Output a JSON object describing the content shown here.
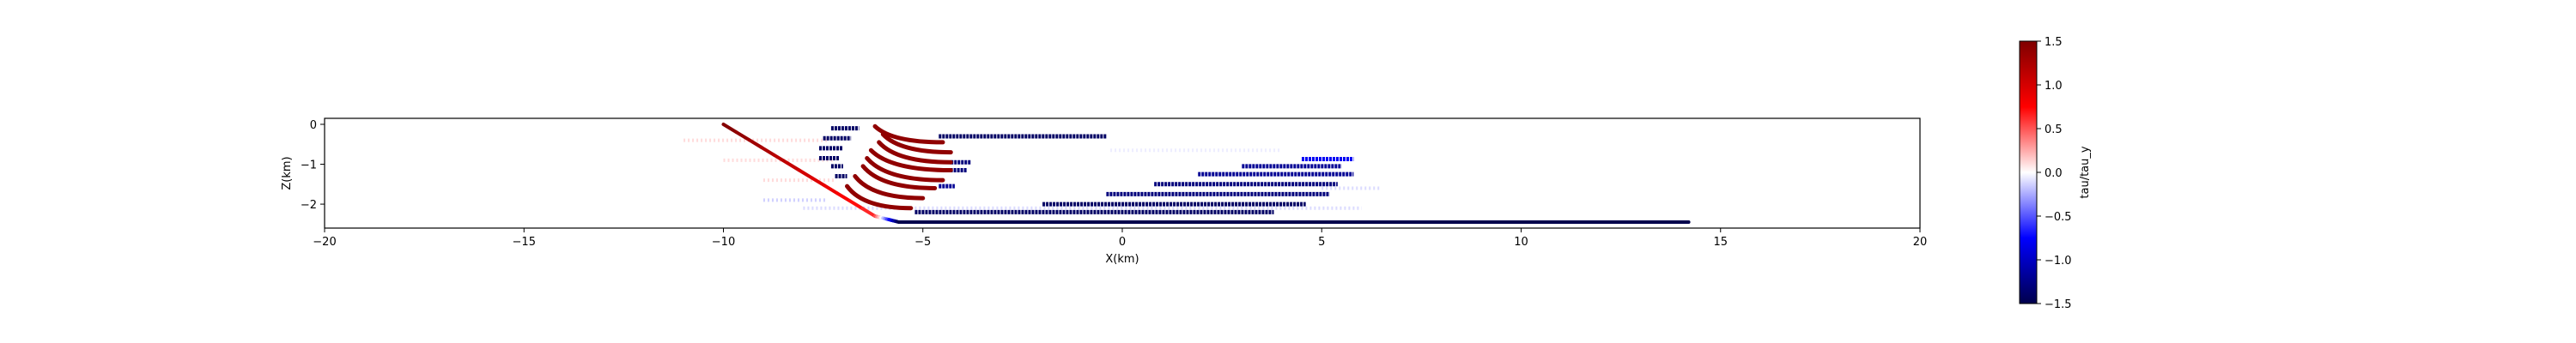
{
  "chart_data": {
    "type": "scatter",
    "xlabel": "X(km)",
    "ylabel": "Z(km)",
    "xlim": [
      -20,
      20
    ],
    "ylim": [
      -2.6,
      0.15
    ],
    "x_ticks": [
      -20,
      -15,
      -10,
      -5,
      0,
      5,
      10,
      15,
      20
    ],
    "y_ticks": [
      0,
      -1,
      -2
    ],
    "grid": false,
    "colorbar": {
      "label": "tau/tau_y",
      "range": [
        -1.5,
        1.5
      ],
      "ticks": [
        1.5,
        1.0,
        0.5,
        0.0,
        -0.5,
        -1.0,
        -1.5
      ],
      "colormap": "seismic",
      "colors": [
        "#00004c",
        "#0000ff",
        "#ffffff",
        "#ff0000",
        "#7f0000"
      ]
    },
    "fault": {
      "points": [
        [
          -10,
          0
        ],
        [
          -6.2,
          -2.3
        ],
        [
          -5.6,
          -2.45
        ],
        [
          14.2,
          -2.45
        ]
      ],
      "values": [
        1.5,
        0.6,
        -1.5,
        -1.5
      ]
    },
    "bands": [
      {
        "x": [
          -7.3,
          -6.6
        ],
        "z": -0.1,
        "value": -1.4
      },
      {
        "x": [
          -7.5,
          -6.8
        ],
        "z": -0.35,
        "value": -1.4
      },
      {
        "x": [
          -7.6,
          -7.0
        ],
        "z": -0.6,
        "value": -1.4
      },
      {
        "x": [
          -7.6,
          -7.1
        ],
        "z": -0.85,
        "value": -1.4
      },
      {
        "x": [
          -7.3,
          -7.0
        ],
        "z": -1.05,
        "value": -1.4
      },
      {
        "x": [
          -7.2,
          -6.9
        ],
        "z": -1.3,
        "value": -1.4
      },
      {
        "x": [
          -4.6,
          -0.4
        ],
        "z": -0.3,
        "value": -1.4
      },
      {
        "x": [
          -4.3,
          -3.8
        ],
        "z": -0.95,
        "value": -1.3
      },
      {
        "x": [
          -4.4,
          -3.9
        ],
        "z": -1.15,
        "value": -1.3
      },
      {
        "x": [
          -4.6,
          -4.2
        ],
        "z": -1.55,
        "value": -1.2
      },
      {
        "x": [
          3.0,
          5.5
        ],
        "z": -1.05,
        "value": -1.2
      },
      {
        "x": [
          1.9,
          5.8
        ],
        "z": -1.25,
        "value": -1.2
      },
      {
        "x": [
          0.8,
          5.4
        ],
        "z": -1.5,
        "value": -1.3
      },
      {
        "x": [
          -0.4,
          5.2
        ],
        "z": -1.75,
        "value": -1.3
      },
      {
        "x": [
          -2.0,
          4.6
        ],
        "z": -2.0,
        "value": -1.4
      },
      {
        "x": [
          -5.2,
          3.8
        ],
        "z": -2.2,
        "value": -1.4
      },
      {
        "x": [
          4.5,
          5.8
        ],
        "z": -0.87,
        "value": -0.8
      }
    ],
    "arcs": [
      {
        "start": [
          -6.2,
          -0.05
        ],
        "end": [
          -4.5,
          -0.45
        ],
        "value": 1.4
      },
      {
        "start": [
          -6.0,
          -0.25
        ],
        "end": [
          -4.3,
          -0.7
        ],
        "value": 1.4
      },
      {
        "start": [
          -6.1,
          -0.45
        ],
        "end": [
          -4.3,
          -0.95
        ],
        "value": 1.4
      },
      {
        "start": [
          -6.3,
          -0.65
        ],
        "end": [
          -4.3,
          -1.15
        ],
        "value": 1.4
      },
      {
        "start": [
          -6.4,
          -0.85
        ],
        "end": [
          -4.5,
          -1.4
        ],
        "value": 1.4
      },
      {
        "start": [
          -6.5,
          -1.05
        ],
        "end": [
          -4.7,
          -1.6
        ],
        "value": 1.4
      },
      {
        "start": [
          -6.7,
          -1.3
        ],
        "end": [
          -5.0,
          -1.85
        ],
        "value": 1.4
      },
      {
        "start": [
          -6.9,
          -1.55
        ],
        "end": [
          -5.3,
          -2.1
        ],
        "value": 1.4
      }
    ],
    "faint_bands": [
      {
        "x": [
          -11.0,
          -7.4
        ],
        "z": -0.4,
        "value": 0.3
      },
      {
        "x": [
          -10.0,
          -7.2
        ],
        "z": -0.9,
        "value": 0.3
      },
      {
        "x": [
          -9.0,
          -7.2
        ],
        "z": -1.4,
        "value": 0.3
      },
      {
        "x": [
          -9.0,
          -7.4
        ],
        "z": -1.9,
        "value": -0.4
      },
      {
        "x": [
          -8.0,
          6.0
        ],
        "z": -2.1,
        "value": -0.3
      },
      {
        "x": [
          5.0,
          6.5
        ],
        "z": -1.6,
        "value": -0.3
      },
      {
        "x": [
          -0.3,
          4.0
        ],
        "z": -0.65,
        "value": -0.15
      }
    ]
  }
}
